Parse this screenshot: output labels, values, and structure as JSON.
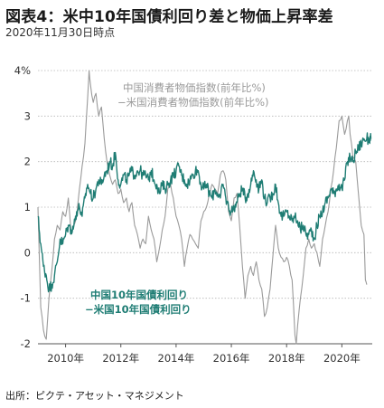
{
  "header": {
    "title": "図表4：米中10年国債利回り差と物価上昇率差",
    "subtitle": "2020年11月30日時点"
  },
  "footer": {
    "source": "出所：ピクテ・アセット・マネジメント"
  },
  "chart_data": {
    "type": "line",
    "title": "図表4：米中10年国債利回り差と物価上昇率差",
    "subtitle": "2020年11月30日時点",
    "x_unit": "year",
    "x_range": [
      2009.0,
      2021.1
    ],
    "ylim": [
      -2,
      4
    ],
    "y_ticks": [
      {
        "value": 4,
        "label": "4%"
      },
      {
        "value": 3,
        "label": "3"
      },
      {
        "value": 2,
        "label": "2"
      },
      {
        "value": 1,
        "label": "1"
      },
      {
        "value": 0,
        "label": "0"
      },
      {
        "value": -1,
        "label": "-1"
      },
      {
        "value": -2,
        "label": "-2"
      }
    ],
    "x_ticks": [
      {
        "value": 2010,
        "label": "2010年"
      },
      {
        "value": 2012,
        "label": "2012年"
      },
      {
        "value": 2014,
        "label": "2014年"
      },
      {
        "value": 2016,
        "label": "2016年"
      },
      {
        "value": 2018,
        "label": "2018年"
      },
      {
        "value": 2020,
        "label": "2020年"
      }
    ],
    "grid": "horizontal-dotted",
    "series": [
      {
        "name": "中国消費者物価指数(前年比%)−米国消費者物価指数(前年比%)",
        "label_lines": [
          "中国消費者物価指数(前年比%)",
          "−米国消費者物価指数(前年比%)"
        ],
        "color": "#9a9a9a",
        "style": "line",
        "points": [
          [
            2009.0,
            1.0
          ],
          [
            2009.1,
            -1.2
          ],
          [
            2009.2,
            -1.7
          ],
          [
            2009.3,
            -1.9
          ],
          [
            2009.4,
            -1.0
          ],
          [
            2009.5,
            -0.4
          ],
          [
            2009.6,
            0.3
          ],
          [
            2009.7,
            0.6
          ],
          [
            2009.8,
            0.5
          ],
          [
            2009.9,
            0.9
          ],
          [
            2010.0,
            0.8
          ],
          [
            2010.1,
            1.2
          ],
          [
            2010.2,
            0.4
          ],
          [
            2010.3,
            0.6
          ],
          [
            2010.4,
            0.8
          ],
          [
            2010.5,
            1.4
          ],
          [
            2010.6,
            1.9
          ],
          [
            2010.7,
            2.4
          ],
          [
            2010.8,
            3.4
          ],
          [
            2010.85,
            4.0
          ],
          [
            2010.9,
            3.7
          ],
          [
            2011.0,
            3.3
          ],
          [
            2011.1,
            3.5
          ],
          [
            2011.2,
            3.0
          ],
          [
            2011.3,
            3.2
          ],
          [
            2011.4,
            2.5
          ],
          [
            2011.5,
            2.0
          ],
          [
            2011.6,
            1.7
          ],
          [
            2011.7,
            1.5
          ],
          [
            2011.8,
            1.6
          ],
          [
            2011.9,
            1.3
          ],
          [
            2012.0,
            1.4
          ],
          [
            2012.1,
            1.1
          ],
          [
            2012.2,
            1.2
          ],
          [
            2012.3,
            0.9
          ],
          [
            2012.4,
            1.1
          ],
          [
            2012.5,
            0.6
          ],
          [
            2012.6,
            0.4
          ],
          [
            2012.7,
            0.1
          ],
          [
            2012.8,
            0.3
          ],
          [
            2012.9,
            0.2
          ],
          [
            2013.0,
            0.8
          ],
          [
            2013.1,
            0.5
          ],
          [
            2013.2,
            0.3
          ],
          [
            2013.3,
            -0.2
          ],
          [
            2013.4,
            0.1
          ],
          [
            2013.5,
            0.5
          ],
          [
            2013.6,
            0.8
          ],
          [
            2013.7,
            1.4
          ],
          [
            2013.8,
            1.5
          ],
          [
            2013.9,
            1.2
          ],
          [
            2014.0,
            0.8
          ],
          [
            2014.1,
            0.6
          ],
          [
            2014.2,
            0.3
          ],
          [
            2014.3,
            -0.3
          ],
          [
            2014.4,
            0.1
          ],
          [
            2014.5,
            0.4
          ],
          [
            2014.6,
            0.3
          ],
          [
            2014.7,
            0.2
          ],
          [
            2014.8,
            0.1
          ],
          [
            2014.9,
            0.7
          ],
          [
            2015.0,
            0.9
          ],
          [
            2015.1,
            1.0
          ],
          [
            2015.2,
            1.3
          ],
          [
            2015.3,
            1.5
          ],
          [
            2015.4,
            1.4
          ],
          [
            2015.5,
            1.3
          ],
          [
            2015.6,
            1.7
          ],
          [
            2015.7,
            1.8
          ],
          [
            2015.8,
            1.6
          ],
          [
            2015.9,
            0.9
          ],
          [
            2016.0,
            0.7
          ],
          [
            2016.1,
            1.2
          ],
          [
            2016.2,
            1.3
          ],
          [
            2016.3,
            0.6
          ],
          [
            2016.4,
            -0.3
          ],
          [
            2016.5,
            -1.0
          ],
          [
            2016.6,
            -0.5
          ],
          [
            2016.7,
            -0.3
          ],
          [
            2016.8,
            -0.5
          ],
          [
            2016.9,
            -0.2
          ],
          [
            2017.0,
            -0.6
          ],
          [
            2017.1,
            -0.8
          ],
          [
            2017.2,
            -1.4
          ],
          [
            2017.3,
            -1.2
          ],
          [
            2017.4,
            -0.8
          ],
          [
            2017.5,
            -0.1
          ],
          [
            2017.6,
            0.6
          ],
          [
            2017.7,
            0.1
          ],
          [
            2017.8,
            -0.1
          ],
          [
            2017.9,
            -0.2
          ],
          [
            2018.0,
            -0.1
          ],
          [
            2018.1,
            -0.3
          ],
          [
            2018.2,
            -0.6
          ],
          [
            2018.3,
            -1.8
          ],
          [
            2018.35,
            -2.0
          ],
          [
            2018.4,
            -1.6
          ],
          [
            2018.5,
            -1.0
          ],
          [
            2018.6,
            -0.5
          ],
          [
            2018.7,
            0.1
          ],
          [
            2018.8,
            0.3
          ],
          [
            2018.9,
            0.1
          ],
          [
            2019.0,
            0.2
          ],
          [
            2019.1,
            0.0
          ],
          [
            2019.2,
            -0.3
          ],
          [
            2019.3,
            0.3
          ],
          [
            2019.4,
            0.6
          ],
          [
            2019.5,
            0.9
          ],
          [
            2019.6,
            1.4
          ],
          [
            2019.7,
            1.8
          ],
          [
            2019.8,
            2.3
          ],
          [
            2019.9,
            2.9
          ],
          [
            2020.0,
            3.0
          ],
          [
            2020.1,
            2.6
          ],
          [
            2020.2,
            2.9
          ],
          [
            2020.25,
            3.0
          ],
          [
            2020.3,
            2.6
          ],
          [
            2020.4,
            2.1
          ],
          [
            2020.5,
            2.0
          ],
          [
            2020.6,
            1.3
          ],
          [
            2020.7,
            0.6
          ],
          [
            2020.8,
            0.4
          ],
          [
            2020.85,
            -0.6
          ],
          [
            2020.9,
            -0.7
          ]
        ]
      },
      {
        "name": "中国10年国債利回り−米国10年国債利回り",
        "label_lines": [
          "中国10年国債利回り",
          "−米国10年国債利回り"
        ],
        "color": "#1f7d74",
        "style": "line",
        "points": [
          [
            2009.0,
            0.8
          ],
          [
            2009.1,
            0.2
          ],
          [
            2009.2,
            -0.3
          ],
          [
            2009.3,
            -0.5
          ],
          [
            2009.4,
            -0.8
          ],
          [
            2009.5,
            -0.7
          ],
          [
            2009.6,
            -0.5
          ],
          [
            2009.7,
            -0.2
          ],
          [
            2009.8,
            0.3
          ],
          [
            2009.9,
            0.2
          ],
          [
            2010.0,
            0.4
          ],
          [
            2010.1,
            0.6
          ],
          [
            2010.2,
            0.5
          ],
          [
            2010.3,
            0.6
          ],
          [
            2010.4,
            0.9
          ],
          [
            2010.5,
            1.0
          ],
          [
            2010.6,
            0.8
          ],
          [
            2010.7,
            1.2
          ],
          [
            2010.8,
            1.5
          ],
          [
            2010.9,
            1.3
          ],
          [
            2011.0,
            1.2
          ],
          [
            2011.1,
            1.4
          ],
          [
            2011.2,
            1.6
          ],
          [
            2011.3,
            1.5
          ],
          [
            2011.4,
            1.7
          ],
          [
            2011.5,
            1.8
          ],
          [
            2011.6,
            2.0
          ],
          [
            2011.7,
            1.9
          ],
          [
            2011.8,
            2.2
          ],
          [
            2011.9,
            1.6
          ],
          [
            2012.0,
            1.5
          ],
          [
            2012.1,
            1.7
          ],
          [
            2012.2,
            1.6
          ],
          [
            2012.3,
            1.7
          ],
          [
            2012.4,
            1.8
          ],
          [
            2012.5,
            1.7
          ],
          [
            2012.6,
            1.8
          ],
          [
            2012.7,
            1.8
          ],
          [
            2012.8,
            1.7
          ],
          [
            2012.9,
            1.7
          ],
          [
            2013.0,
            1.6
          ],
          [
            2013.1,
            1.8
          ],
          [
            2013.2,
            1.6
          ],
          [
            2013.3,
            1.5
          ],
          [
            2013.4,
            1.3
          ],
          [
            2013.5,
            1.5
          ],
          [
            2013.6,
            1.4
          ],
          [
            2013.7,
            1.5
          ],
          [
            2013.8,
            1.6
          ],
          [
            2013.9,
            1.7
          ],
          [
            2014.0,
            1.8
          ],
          [
            2014.1,
            1.9
          ],
          [
            2014.2,
            1.7
          ],
          [
            2014.3,
            1.6
          ],
          [
            2014.4,
            1.5
          ],
          [
            2014.5,
            1.6
          ],
          [
            2014.6,
            1.7
          ],
          [
            2014.7,
            1.8
          ],
          [
            2014.8,
            1.8
          ],
          [
            2014.9,
            1.5
          ],
          [
            2015.0,
            1.4
          ],
          [
            2015.1,
            1.5
          ],
          [
            2015.2,
            1.3
          ],
          [
            2015.3,
            1.2
          ],
          [
            2015.4,
            1.4
          ],
          [
            2015.5,
            1.3
          ],
          [
            2015.6,
            1.2
          ],
          [
            2015.7,
            1.5
          ],
          [
            2015.8,
            1.2
          ],
          [
            2015.9,
            1.0
          ],
          [
            2016.0,
            0.9
          ],
          [
            2016.1,
            1.0
          ],
          [
            2016.2,
            1.1
          ],
          [
            2016.3,
            1.3
          ],
          [
            2016.4,
            1.4
          ],
          [
            2016.5,
            1.2
          ],
          [
            2016.6,
            1.3
          ],
          [
            2016.7,
            1.5
          ],
          [
            2016.8,
            1.8
          ],
          [
            2016.9,
            1.6
          ],
          [
            2017.0,
            1.4
          ],
          [
            2017.1,
            1.6
          ],
          [
            2017.2,
            1.2
          ],
          [
            2017.3,
            1.1
          ],
          [
            2017.4,
            1.2
          ],
          [
            2017.5,
            1.3
          ],
          [
            2017.6,
            1.5
          ],
          [
            2017.7,
            1.1
          ],
          [
            2017.8,
            0.8
          ],
          [
            2017.9,
            0.8
          ],
          [
            2018.0,
            0.9
          ],
          [
            2018.1,
            0.8
          ],
          [
            2018.2,
            0.7
          ],
          [
            2018.3,
            0.8
          ],
          [
            2018.4,
            0.7
          ],
          [
            2018.5,
            0.5
          ],
          [
            2018.6,
            0.6
          ],
          [
            2018.7,
            0.4
          ],
          [
            2018.8,
            0.4
          ],
          [
            2018.9,
            0.5
          ],
          [
            2019.0,
            0.3
          ],
          [
            2019.1,
            0.6
          ],
          [
            2019.2,
            0.8
          ],
          [
            2019.3,
            0.9
          ],
          [
            2019.4,
            1.1
          ],
          [
            2019.5,
            1.2
          ],
          [
            2019.6,
            1.4
          ],
          [
            2019.7,
            1.3
          ],
          [
            2019.8,
            1.4
          ],
          [
            2019.9,
            1.5
          ],
          [
            2020.0,
            1.4
          ],
          [
            2020.1,
            1.6
          ],
          [
            2020.2,
            2.0
          ],
          [
            2020.3,
            2.1
          ],
          [
            2020.4,
            2.0
          ],
          [
            2020.5,
            2.2
          ],
          [
            2020.6,
            2.3
          ],
          [
            2020.7,
            2.4
          ],
          [
            2020.8,
            2.5
          ],
          [
            2020.9,
            2.5
          ],
          [
            2021.0,
            2.5
          ],
          [
            2021.05,
            2.5
          ]
        ]
      }
    ]
  }
}
